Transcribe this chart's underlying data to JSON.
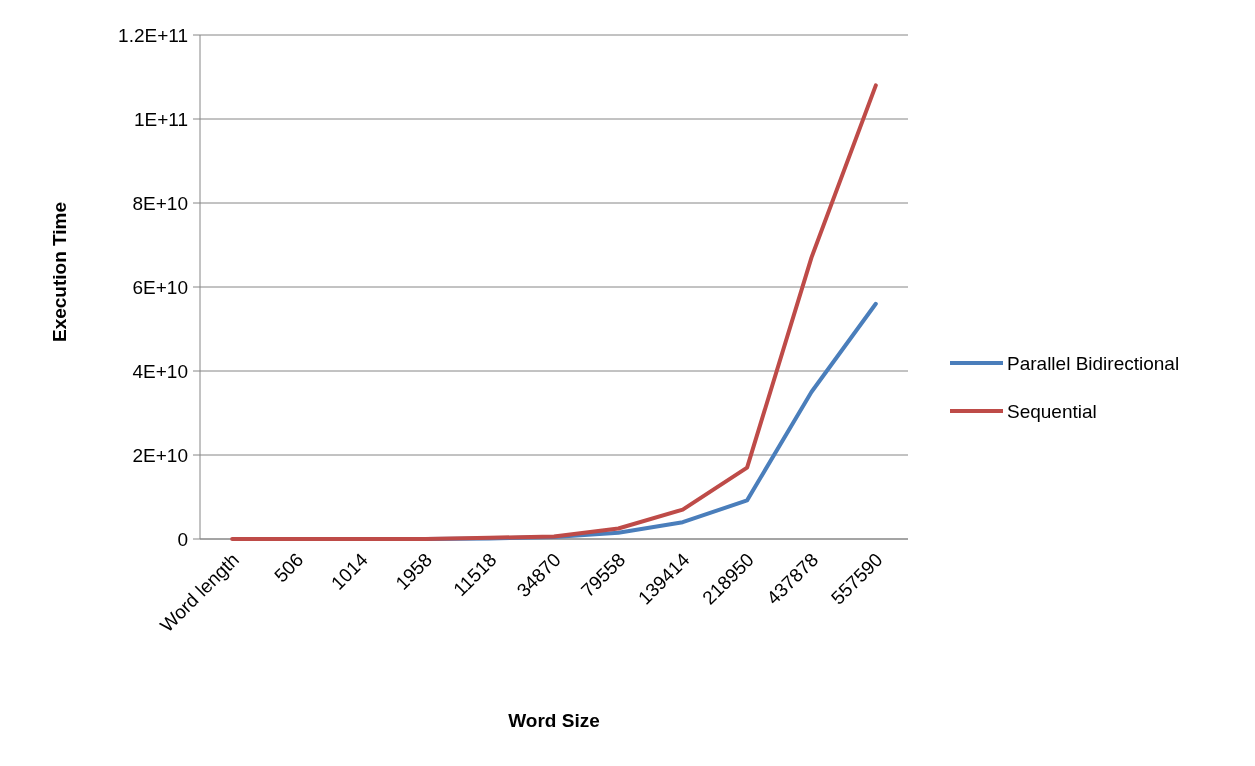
{
  "chart_data": {
    "type": "line",
    "xlabel": "Word Size",
    "ylabel": "Execution Time",
    "categories": [
      "Word length",
      "506",
      "1014",
      "1958",
      "11518",
      "34870",
      "79558",
      "139414",
      "218950",
      "437878",
      "557590"
    ],
    "series": [
      {
        "name": "Parallel Bidirectional",
        "color": "#4a7ebb",
        "values": [
          null,
          null,
          null,
          0,
          100000000.0,
          500000000.0,
          1500000000.0,
          4000000000.0,
          9200000000.0,
          35000000000.0,
          56000000000.0
        ]
      },
      {
        "name": "Sequential",
        "color": "#be4b48",
        "values": [
          0,
          0,
          0,
          0,
          300000000.0,
          600000000.0,
          2500000000.0,
          7000000000.0,
          17000000000.0,
          67000000000.0,
          108000000000.0
        ]
      }
    ],
    "ylim": [
      0,
      120000000000.0
    ],
    "yticks": [
      {
        "value": 0,
        "label": "0"
      },
      {
        "value": 20000000000.0,
        "label": "2E+10"
      },
      {
        "value": 40000000000.0,
        "label": "4E+10"
      },
      {
        "value": 60000000000.0,
        "label": "6E+10"
      },
      {
        "value": 80000000000.0,
        "label": "8E+10"
      },
      {
        "value": 100000000000.0,
        "label": "1E+11"
      },
      {
        "value": 120000000000.0,
        "label": "1.2E+11"
      }
    ],
    "grid": "y",
    "legend": "right",
    "marker": "none",
    "line_style": "solid"
  }
}
